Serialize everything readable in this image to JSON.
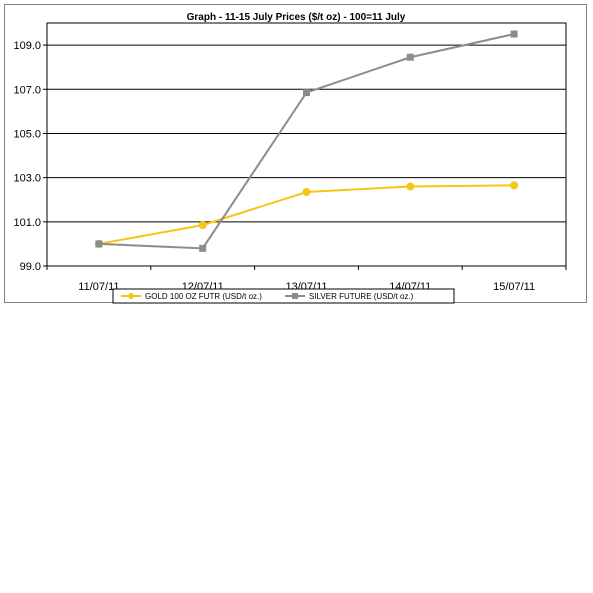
{
  "chart_data": {
    "type": "line",
    "title": "Graph -    11-15 July Prices ($/t oz) - 100=11 July",
    "categories": [
      "11/07/11",
      "12/07/11",
      "13/07/11",
      "14/07/11",
      "15/07/11"
    ],
    "ylim": [
      99.0,
      110.0
    ],
    "yticks": [
      "99.0",
      "101.0",
      "103.0",
      "105.0",
      "107.0",
      "109.0"
    ],
    "grid": true,
    "legend_position": "bottom",
    "series": [
      {
        "name": "GOLD 100 OZ FUTR (USD/t oz.)",
        "color": "#f5c518",
        "marker": "circle",
        "values": [
          100.0,
          100.85,
          102.35,
          102.6,
          102.65
        ]
      },
      {
        "name": "SILVER FUTURE (USD/t oz.)",
        "color": "#8c8c8c",
        "marker": "square",
        "values": [
          100.0,
          99.8,
          106.85,
          108.45,
          109.5
        ]
      }
    ]
  }
}
